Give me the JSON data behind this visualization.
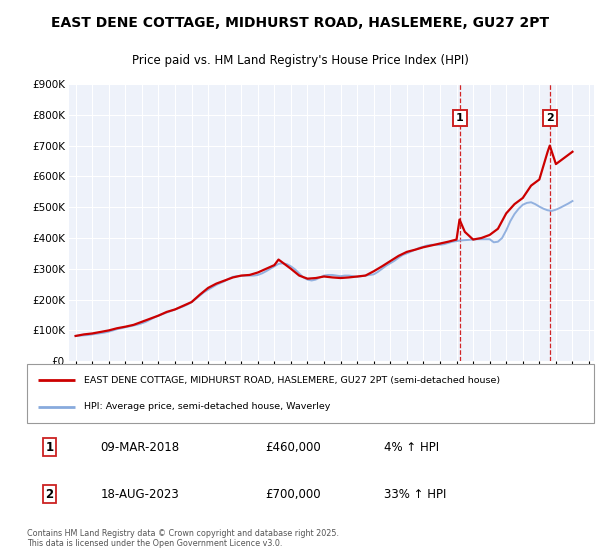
{
  "title": "EAST DENE COTTAGE, MIDHURST ROAD, HASLEMERE, GU27 2PT",
  "subtitle": "Price paid vs. HM Land Registry's House Price Index (HPI)",
  "title_fontsize": 10,
  "subtitle_fontsize": 8.5,
  "background_color": "#ffffff",
  "plot_bg_color": "#eef2fa",
  "grid_color": "#ffffff",
  "red_color": "#cc0000",
  "blue_color": "#88aadd",
  "marker1_year": 2018.18,
  "marker2_year": 2023.63,
  "purchase1_price": 460000,
  "purchase2_price": 700000,
  "purchase1_label": "1",
  "purchase2_label": "2",
  "purchase1_date": "09-MAR-2018",
  "purchase1_pct": "4%",
  "purchase2_date": "18-AUG-2023",
  "purchase2_pct": "33%",
  "ylim_min": 0,
  "ylim_max": 900000,
  "ytick_step": 100000,
  "xlabel_start": 1995,
  "xlabel_end": 2026,
  "legend_line1": "EAST DENE COTTAGE, MIDHURST ROAD, HASLEMERE, GU27 2PT (semi-detached house)",
  "legend_line2": "HPI: Average price, semi-detached house, Waverley",
  "footnote": "Contains HM Land Registry data © Crown copyright and database right 2025.\nThis data is licensed under the Open Government Licence v3.0.",
  "hpi_years": [
    1995.0,
    1995.25,
    1995.5,
    1995.75,
    1996.0,
    1996.25,
    1996.5,
    1996.75,
    1997.0,
    1997.25,
    1997.5,
    1997.75,
    1998.0,
    1998.25,
    1998.5,
    1998.75,
    1999.0,
    1999.25,
    1999.5,
    1999.75,
    2000.0,
    2000.25,
    2000.5,
    2000.75,
    2001.0,
    2001.25,
    2001.5,
    2001.75,
    2002.0,
    2002.25,
    2002.5,
    2002.75,
    2003.0,
    2003.25,
    2003.5,
    2003.75,
    2004.0,
    2004.25,
    2004.5,
    2004.75,
    2005.0,
    2005.25,
    2005.5,
    2005.75,
    2006.0,
    2006.25,
    2006.5,
    2006.75,
    2007.0,
    2007.25,
    2007.5,
    2007.75,
    2008.0,
    2008.25,
    2008.5,
    2008.75,
    2009.0,
    2009.25,
    2009.5,
    2009.75,
    2010.0,
    2010.25,
    2010.5,
    2010.75,
    2011.0,
    2011.25,
    2011.5,
    2011.75,
    2012.0,
    2012.25,
    2012.5,
    2012.75,
    2013.0,
    2013.25,
    2013.5,
    2013.75,
    2014.0,
    2014.25,
    2014.5,
    2014.75,
    2015.0,
    2015.25,
    2015.5,
    2015.75,
    2016.0,
    2016.25,
    2016.5,
    2016.75,
    2017.0,
    2017.25,
    2017.5,
    2017.75,
    2018.0,
    2018.25,
    2018.5,
    2018.75,
    2019.0,
    2019.25,
    2019.5,
    2019.75,
    2020.0,
    2020.25,
    2020.5,
    2020.75,
    2021.0,
    2021.25,
    2021.5,
    2021.75,
    2022.0,
    2022.25,
    2022.5,
    2022.75,
    2023.0,
    2023.25,
    2023.5,
    2023.75,
    2024.0,
    2024.25,
    2024.5,
    2024.75,
    2025.0
  ],
  "hpi_values": [
    82000,
    83000,
    84000,
    85000,
    87000,
    89000,
    91000,
    93000,
    96000,
    100000,
    104000,
    107000,
    110000,
    113000,
    116000,
    119000,
    123000,
    128000,
    135000,
    142000,
    148000,
    153000,
    158000,
    163000,
    168000,
    173000,
    178000,
    184000,
    192000,
    202000,
    213000,
    224000,
    232000,
    240000,
    248000,
    254000,
    260000,
    268000,
    274000,
    276000,
    277000,
    278000,
    278000,
    278000,
    280000,
    285000,
    292000,
    300000,
    308000,
    316000,
    318000,
    315000,
    308000,
    298000,
    285000,
    272000,
    265000,
    262000,
    265000,
    272000,
    278000,
    280000,
    280000,
    278000,
    276000,
    278000,
    278000,
    276000,
    274000,
    276000,
    278000,
    280000,
    282000,
    290000,
    300000,
    310000,
    318000,
    326000,
    336000,
    345000,
    350000,
    356000,
    362000,
    368000,
    372000,
    376000,
    378000,
    378000,
    378000,
    380000,
    384000,
    388000,
    390000,
    392000,
    393000,
    394000,
    395000,
    396000,
    396000,
    396000,
    396000,
    386000,
    388000,
    400000,
    425000,
    455000,
    478000,
    495000,
    508000,
    514000,
    516000,
    510000,
    502000,
    495000,
    490000,
    488000,
    492000,
    498000,
    505000,
    512000,
    520000
  ],
  "price_years": [
    1995.0,
    1995.5,
    1996.0,
    1996.5,
    1997.0,
    1997.5,
    1998.0,
    1998.5,
    1999.0,
    1999.5,
    2000.0,
    2000.5,
    2001.0,
    2001.5,
    2002.0,
    2002.5,
    2003.0,
    2003.5,
    2004.0,
    2004.5,
    2005.0,
    2005.5,
    2006.0,
    2006.5,
    2007.0,
    2007.25,
    2007.75,
    2008.0,
    2008.5,
    2009.0,
    2009.5,
    2010.0,
    2010.5,
    2011.0,
    2011.5,
    2012.0,
    2012.5,
    2013.0,
    2013.5,
    2014.0,
    2014.5,
    2015.0,
    2015.5,
    2016.0,
    2016.5,
    2017.0,
    2017.5,
    2018.0,
    2018.18,
    2018.5,
    2019.0,
    2019.5,
    2020.0,
    2020.5,
    2021.0,
    2021.5,
    2022.0,
    2022.5,
    2022.75,
    2023.0,
    2023.5,
    2023.63,
    2024.0,
    2024.5,
    2025.0
  ],
  "price_values": [
    82000,
    87000,
    90000,
    95000,
    100000,
    107000,
    112000,
    118000,
    128000,
    138000,
    148000,
    160000,
    168000,
    180000,
    192000,
    216000,
    238000,
    252000,
    262000,
    272000,
    278000,
    280000,
    288000,
    300000,
    312000,
    330000,
    310000,
    300000,
    278000,
    268000,
    270000,
    275000,
    272000,
    270000,
    272000,
    275000,
    278000,
    292000,
    308000,
    325000,
    342000,
    355000,
    362000,
    370000,
    376000,
    382000,
    388000,
    395000,
    460000,
    420000,
    395000,
    400000,
    410000,
    430000,
    480000,
    510000,
    530000,
    570000,
    580000,
    590000,
    680000,
    700000,
    640000,
    660000,
    680000
  ]
}
